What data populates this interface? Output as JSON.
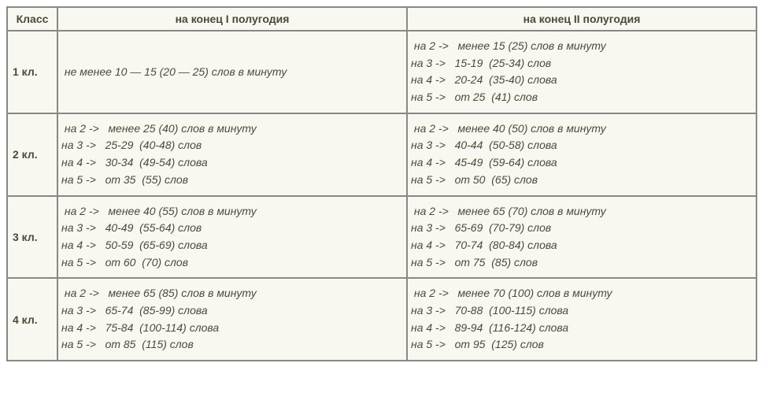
{
  "header": {
    "class": "Класс",
    "sem1": "на конец I полугодия",
    "sem2": "на конец II полугодия"
  },
  "rows": [
    {
      "class": "1 кл.",
      "sem1": [
        " не менее 10 — 15 (20 — 25) слов в минуту"
      ],
      "sem2": [
        " на 2 ->   менее 15 (25) слов в минуту",
        "на 3 ->   15-19  (25-34) слов",
        "на 4 ->   20-24  (35-40) слова",
        "на 5 ->   от 25  (41) слов"
      ]
    },
    {
      "class": "2 кл.",
      "sem1": [
        " на 2 ->   менее 25 (40) слов в минуту",
        "на 3 ->   25-29  (40-48) слов",
        "на 4 ->   30-34  (49-54) слова",
        "на 5 ->   от 35  (55) слов"
      ],
      "sem2": [
        " на 2 ->   менее 40 (50) слов в минуту",
        "на 3 ->   40-44  (50-58) слова",
        "на 4 ->   45-49  (59-64) слова",
        "на 5 ->   от 50  (65) слов"
      ]
    },
    {
      "class": "3 кл.",
      "sem1": [
        " на 2 ->   менее 40 (55) слов в минуту",
        "на 3 ->   40-49  (55-64) слов",
        "на 4 ->   50-59  (65-69) слова",
        "на 5 ->   от 60  (70) слов"
      ],
      "sem2": [
        " на 2 ->   менее 65 (70) слов в минуту",
        "на 3 ->   65-69  (70-79) слов",
        "на 4 ->   70-74  (80-84) слова",
        "на 5 ->   от 75  (85) слов"
      ]
    },
    {
      "class": "4 кл.",
      "sem1": [
        " на 2 ->   менее 65 (85) слов в минуту",
        "на 3 ->   65-74  (85-99) слова",
        "на 4 ->   75-84  (100-114) слова",
        "на 5 ->   от 85  (115) слов"
      ],
      "sem2": [
        " на 2 ->   менее 70 (100) слов в минуту",
        "на 3 ->   70-88  (100-115) слова",
        "на 4 ->   89-94  (116-124) слова",
        "на 5 ->   от 95  (125) слов"
      ]
    }
  ]
}
